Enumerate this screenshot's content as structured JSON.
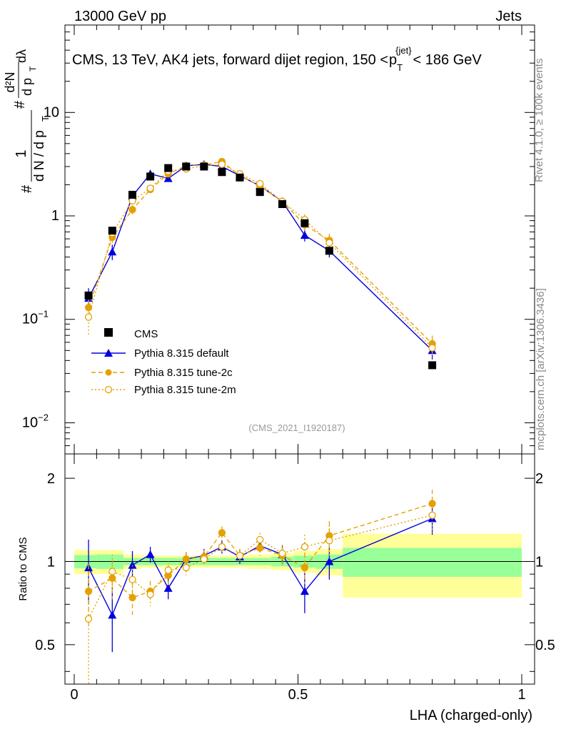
{
  "header": {
    "energy": "13000 GeV pp",
    "category": "Jets",
    "rivet_label": "Rivet 4.1.0, ≥ 100k events",
    "site_label": "mcplots.cern.ch [arXiv:1306.3436]",
    "analysis_id": "(CMS_2021_I1920187)"
  },
  "title": {
    "main": "CMS, 13 TeV, AK4 jets, forward dijet region, 150 <",
    "p": "p",
    "sub": "T",
    "sup": "{jet}",
    "tail": "< 186 GeV"
  },
  "axes": {
    "xlabel": "LHA (charged-only)",
    "ratio_ylabel": "Ratio to CMS",
    "ylabel_hash1": "#",
    "ylabel_hash2": "#",
    "ylabel_one": "1",
    "ylabel_dN": "d N / d p",
    "ylabel_T": "T",
    "ylabel_d2N": "d²N",
    "ylabel_dpT": "d p",
    "ylabel_T2": "T",
    "ylabel_dl": "dλ",
    "xticks": [
      "0",
      "0.5",
      "1"
    ],
    "main_ticks": [
      {
        "base": "10",
        "exp": "−2"
      },
      {
        "base": "10",
        "exp": "−1"
      },
      {
        "base": "1",
        "exp": ""
      },
      {
        "base": "10",
        "exp": ""
      }
    ],
    "ratio_ticks": [
      "0.5",
      "1",
      "2"
    ]
  },
  "legend": [
    {
      "label": "CMS"
    },
    {
      "label": "Pythia 8.315 default"
    },
    {
      "label": "Pythia 8.315 tune-2c"
    },
    {
      "label": "Pythia 8.315 tune-2m"
    }
  ],
  "chart_data": {
    "type": "scatter",
    "log_y": true,
    "xlim": [
      0,
      1
    ],
    "ylim": [
      0.005,
      70
    ],
    "ratio_ylim": [
      0.36,
      2.45
    ],
    "bins": [
      [
        0.0,
        0.05
      ],
      [
        0.05,
        0.11
      ],
      [
        0.11,
        0.15
      ],
      [
        0.15,
        0.19
      ],
      [
        0.19,
        0.23
      ],
      [
        0.23,
        0.27
      ],
      [
        0.27,
        0.31
      ],
      [
        0.31,
        0.35
      ],
      [
        0.35,
        0.39
      ],
      [
        0.39,
        0.44
      ],
      [
        0.44,
        0.49
      ],
      [
        0.49,
        0.54
      ],
      [
        0.54,
        0.6
      ],
      [
        0.6,
        1.0
      ]
    ],
    "x": [
      0.032,
      0.085,
      0.13,
      0.17,
      0.21,
      0.25,
      0.29,
      0.33,
      0.37,
      0.415,
      0.465,
      0.515,
      0.57,
      0.8
    ],
    "series": [
      {
        "name": "CMS",
        "color": "#000000",
        "values": [
          0.17,
          0.72,
          1.6,
          2.4,
          2.9,
          3.0,
          3.0,
          2.65,
          2.35,
          1.7,
          1.3,
          0.85,
          0.46,
          0.036
        ],
        "band_inner": [
          0.055,
          0.06,
          0.03,
          0.03,
          0.03,
          0.03,
          0.03,
          0.03,
          0.03,
          0.03,
          0.04,
          0.05,
          0.06,
          0.12
        ],
        "band_outer": [
          0.1,
          0.1,
          0.06,
          0.05,
          0.05,
          0.05,
          0.05,
          0.05,
          0.05,
          0.06,
          0.07,
          0.09,
          0.11,
          0.26
        ]
      },
      {
        "name": "Pythia 8.315 default",
        "color": "#0000dd",
        "values": [
          0.16,
          0.45,
          1.55,
          2.55,
          2.3,
          3.05,
          3.15,
          3.0,
          2.45,
          1.95,
          1.38,
          0.65,
          0.46,
          0.05
        ],
        "ratio": [
          0.95,
          0.64,
          0.97,
          1.06,
          0.8,
          1.02,
          1.05,
          1.13,
          1.04,
          1.14,
          1.06,
          0.78,
          1.0,
          1.43
        ],
        "ratio_err": [
          0.25,
          0.17,
          0.12,
          0.07,
          0.07,
          0.06,
          0.06,
          0.06,
          0.06,
          0.06,
          0.08,
          0.13,
          0.14,
          0.18
        ]
      },
      {
        "name": "Pythia 8.315 tune-2c",
        "color": "#e6a000",
        "values": [
          0.13,
          0.62,
          1.15,
          1.8,
          2.55,
          3.05,
          3.1,
          3.35,
          2.45,
          1.95,
          1.38,
          0.82,
          0.58,
          0.058
        ],
        "ratio": [
          0.78,
          0.87,
          0.74,
          0.78,
          0.89,
          1.02,
          1.04,
          1.27,
          1.05,
          1.12,
          1.05,
          0.95,
          1.24,
          1.62
        ],
        "ratio_err": [
          0.2,
          0.14,
          0.1,
          0.07,
          0.07,
          0.06,
          0.06,
          0.07,
          0.06,
          0.07,
          0.08,
          0.12,
          0.16,
          0.2
        ]
      },
      {
        "name": "Pythia 8.315 tune-2m",
        "color": "#e6a000",
        "values": [
          0.105,
          0.68,
          1.4,
          1.85,
          2.7,
          2.85,
          3.05,
          3.15,
          2.55,
          2.05,
          1.38,
          0.92,
          0.55,
          0.053
        ],
        "ratio": [
          0.62,
          0.92,
          0.86,
          0.76,
          0.93,
          0.95,
          1.02,
          1.13,
          1.05,
          1.2,
          1.07,
          1.13,
          1.19,
          1.47
        ],
        "ratio_err": [
          0.33,
          0.14,
          0.11,
          0.07,
          0.07,
          0.06,
          0.06,
          0.07,
          0.06,
          0.07,
          0.08,
          0.12,
          0.16,
          0.2
        ]
      }
    ]
  }
}
